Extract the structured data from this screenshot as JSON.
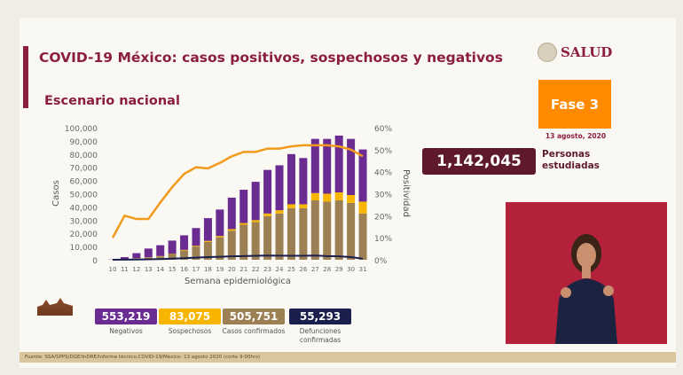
{
  "header": {
    "title": "COVID-19 México: casos positivos, sospechosos y negativos",
    "subtitle": "Escenario nacional",
    "logo": "SALUD",
    "fase": "Fase 3",
    "date": "13 agosto, 2020"
  },
  "total": {
    "value": "1,142,045",
    "label_1": "Personas",
    "label_2": "estudiadas"
  },
  "stats": [
    {
      "value": "553,219",
      "label": "Negativos",
      "color": "#6a2c91"
    },
    {
      "value": "83,075",
      "label": "Sospechosos",
      "color": "#f7b500"
    },
    {
      "value": "505,751",
      "label": "Casos confirmados",
      "color": "#9c7f53"
    },
    {
      "value": "55,293",
      "label": "Defunciones confirmadas",
      "color": "#1a1f4d"
    }
  ],
  "footer": "Fuente: SSA/SPPS/DGE/InDRE/Informe técnico.COVID-19/México- 13 agosto 2020 (corte 9:00hrs)",
  "chart_data": {
    "type": "bar",
    "xlabel": "Semana epidemiológica",
    "ylabel": "Casos",
    "y2label": "Positividad",
    "ylim": [
      0,
      100000
    ],
    "y2lim": [
      0,
      60
    ],
    "yticks": [
      "0",
      "10,000",
      "20,000",
      "30,000",
      "40,000",
      "50,000",
      "60,000",
      "70,000",
      "80,000",
      "90,000",
      "100,000"
    ],
    "y2ticks": [
      "0%",
      "10%",
      "20%",
      "30%",
      "40%",
      "50%",
      "60%"
    ],
    "categories": [
      "10",
      "11",
      "12",
      "13",
      "14",
      "15",
      "16",
      "17",
      "18",
      "19",
      "20",
      "21",
      "22",
      "23",
      "24",
      "25",
      "26",
      "27",
      "28",
      "29",
      "30",
      "31"
    ],
    "series": [
      {
        "name": "Casos confirmados",
        "kind": "bar",
        "color": "#9c7f53",
        "values": [
          0,
          500,
          1000,
          1500,
          2500,
          4000,
          7000,
          10000,
          13500,
          17000,
          22000,
          26500,
          28500,
          33000,
          35000,
          39000,
          39000,
          45000,
          44000,
          45000,
          43000,
          35000
        ]
      },
      {
        "name": "Sospechosos",
        "kind": "bar",
        "color": "#f7b500",
        "values": [
          0,
          100,
          200,
          300,
          300,
          400,
          500,
          600,
          800,
          1000,
          1200,
          1300,
          1500,
          2000,
          2500,
          3000,
          3000,
          5500,
          6000,
          6000,
          6000,
          9000
        ]
      },
      {
        "name": "Negativos",
        "kind": "bar",
        "color": "#6a2c91",
        "values": [
          200,
          1400,
          3800,
          6700,
          8200,
          10100,
          11000,
          13400,
          17200,
          20000,
          23800,
          25200,
          29000,
          33000,
          34000,
          38000,
          35000,
          41000,
          41500,
          43000,
          42500,
          39500
        ]
      },
      {
        "name": "Defunciones",
        "kind": "line",
        "axis": "left",
        "color": "#1a1f4d",
        "values": [
          0,
          50,
          150,
          300,
          500,
          800,
          1200,
          1600,
          2000,
          2300,
          2600,
          2800,
          3000,
          3200,
          3100,
          3000,
          3000,
          3200,
          2800,
          2600,
          2000,
          800
        ]
      },
      {
        "name": "Positividad",
        "kind": "line",
        "axis": "right",
        "color": "#f29a1b",
        "values": [
          10,
          20,
          18.5,
          18.5,
          26,
          33,
          39,
          42,
          41.5,
          44,
          47,
          49,
          49,
          50.5,
          50.5,
          51.5,
          52,
          52,
          52,
          51.5,
          50,
          47
        ]
      }
    ]
  }
}
